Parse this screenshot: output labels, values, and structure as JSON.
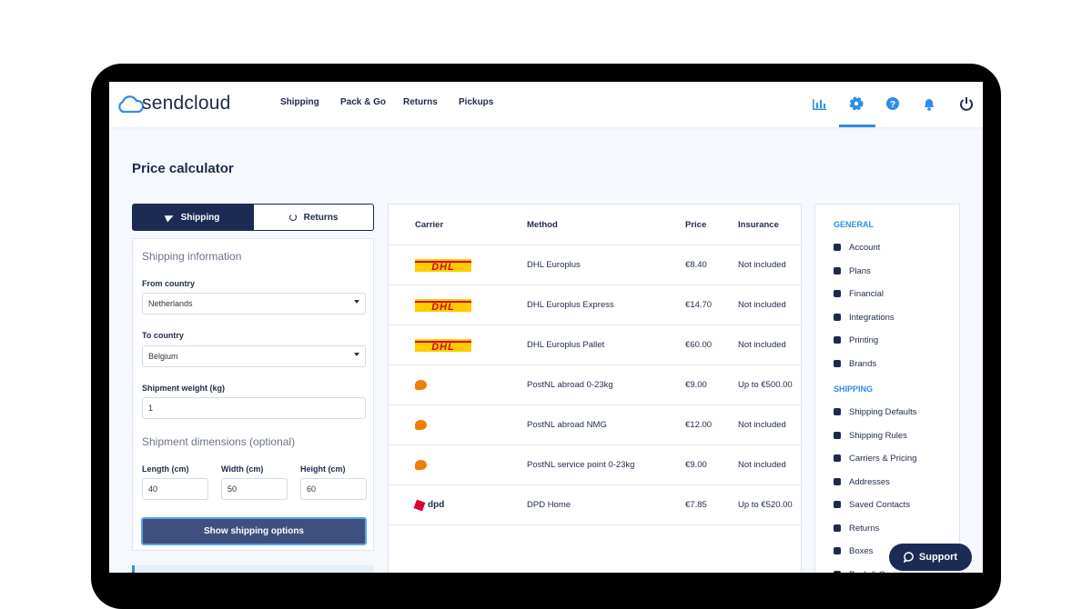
{
  "nav": {
    "logo": "sendcloud",
    "links": [
      "Shipping",
      "Pack & Go",
      "Returns",
      "Pickups"
    ]
  },
  "page_title": "Price calculator",
  "tabs": [
    "Shipping",
    "Returns"
  ],
  "form": {
    "section_title": "Shipping information",
    "from_label": "From country",
    "from_value": "Netherlands",
    "to_label": "To country",
    "to_value": "Belgium",
    "weight_label": "Shipment weight (kg)",
    "weight_value": "1",
    "dimensions_title": "Shipment dimensions (optional)",
    "dimensions": [
      {
        "label": "Length (cm)",
        "value": "40"
      },
      {
        "label": "Width (cm)",
        "value": "50"
      },
      {
        "label": "Height (cm)",
        "value": "60"
      }
    ],
    "button": "Show shipping options"
  },
  "table": {
    "headers": [
      "Carrier",
      "Method",
      "Price",
      "Insurance"
    ],
    "rows": [
      {
        "carrier": "DHL",
        "method": "DHL Europlus",
        "price": "€8.40",
        "insurance": "Not included"
      },
      {
        "carrier": "DHL",
        "method": "DHL Europlus Express",
        "price": "€14.70",
        "insurance": "Not included"
      },
      {
        "carrier": "DHL",
        "method": "DHL Europlus Pallet",
        "price": "€60.00",
        "insurance": "Not included"
      },
      {
        "method": "PostNL abroad 0-23kg",
        "price": "€9.00",
        "insurance": "Up to €500.00"
      },
      {
        "method": "PostNL abroad NMG",
        "price": "€12.00",
        "insurance": "Not included"
      },
      {
        "method": "PostNL service point 0-23kg",
        "price": "€9.00",
        "insurance": "Not included"
      },
      {
        "carrier": "dpd",
        "method": "DPD Home",
        "price": "€7.85",
        "insurance": "Up to €520.00"
      }
    ]
  },
  "sidebar": {
    "sections": [
      {
        "title": "GENERAL",
        "items": [
          "Account",
          "Plans",
          "Financial",
          "Integrations",
          "Printing",
          "Brands"
        ]
      },
      {
        "title": "SHIPPING",
        "items": [
          "Shipping Defaults",
          "Shipping Rules",
          "Carriers & Pricing",
          "Addresses",
          "Saved Contacts",
          "Returns",
          "Boxes",
          "Pack & Go"
        ]
      }
    ]
  },
  "support": "Support"
}
